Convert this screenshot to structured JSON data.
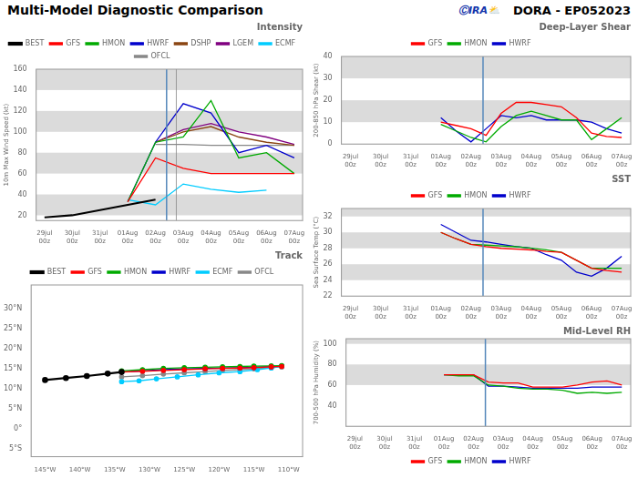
{
  "title": "Multi-Model Diagnostic Comparison",
  "subtitle": "DORA - EP052023",
  "annotation": {
    "text": "ⒸIRA⛅",
    "color": "#1133aa"
  },
  "chart_data": [
    {
      "type": "line",
      "title": "Intensity",
      "ylabel": "10m Max Wind Speed (kt)",
      "x": [
        0,
        1,
        2,
        3,
        4,
        5,
        6,
        7,
        8,
        9
      ],
      "xlim": [
        -0.3,
        9.3
      ],
      "xticks": [
        {
          "value": 0,
          "label": "29jul\n00z"
        },
        {
          "value": 1,
          "label": "30jul\n00z"
        },
        {
          "value": 2,
          "label": "31jul\n00z"
        },
        {
          "value": 3,
          "label": "01Aug\n00z"
        },
        {
          "value": 4,
          "label": "02Aug\n00z"
        },
        {
          "value": 5,
          "label": "03Aug\n00z"
        },
        {
          "value": 6,
          "label": "04Aug\n00z"
        },
        {
          "value": 7,
          "label": "05Aug\n00z"
        },
        {
          "value": 8,
          "label": "06Aug\n00z"
        },
        {
          "value": 9,
          "label": "07Aug\n00z"
        }
      ],
      "ylim": [
        15,
        160
      ],
      "yticks": [
        20,
        40,
        60,
        80,
        100,
        120,
        140,
        160
      ],
      "grid": false,
      "legend": "top",
      "bands": [
        {
          "from": 20,
          "to": 40,
          "color": "#cccccc"
        },
        {
          "from": 60,
          "to": 80,
          "color": "#cccccc"
        },
        {
          "from": 100,
          "to": 120,
          "color": "#cccccc"
        },
        {
          "from": 140,
          "to": 160,
          "color": "#cccccc"
        }
      ],
      "vlines": [
        {
          "value": 4.4,
          "color": "#5588bb"
        },
        {
          "value": 4.75,
          "color": "#888888"
        }
      ],
      "series": [
        {
          "name": "BEST",
          "color": "#000000",
          "values": [
            18,
            20,
            25,
            30,
            35,
            null,
            null,
            null,
            null,
            null
          ]
        },
        {
          "name": "GFS",
          "color": "#ff0000",
          "values": [
            null,
            null,
            null,
            33,
            75,
            65,
            60,
            60,
            60,
            60
          ]
        },
        {
          "name": "HMON",
          "color": "#00aa00",
          "values": [
            null,
            null,
            null,
            33,
            90,
            95,
            130,
            75,
            80,
            60
          ]
        },
        {
          "name": "HWRF",
          "color": "#0000cc",
          "values": [
            null,
            null,
            null,
            33,
            90,
            127,
            118,
            80,
            87,
            75
          ]
        },
        {
          "name": "DSHP",
          "color": "#8B4513",
          "values": [
            null,
            null,
            null,
            null,
            90,
            100,
            105,
            95,
            90,
            87
          ]
        },
        {
          "name": "LGEM",
          "color": "#800080",
          "values": [
            null,
            null,
            null,
            null,
            90,
            102,
            108,
            100,
            95,
            88
          ]
        },
        {
          "name": "ECMF",
          "color": "#00ccff",
          "values": [
            null,
            null,
            null,
            35,
            30,
            50,
            45,
            42,
            44,
            null
          ]
        },
        {
          "name": "OFCL",
          "color": "#888888",
          "values": [
            null,
            null,
            null,
            null,
            88,
            88,
            87,
            87,
            87,
            87
          ]
        }
      ]
    },
    {
      "type": "line",
      "title": "Track",
      "xlim": [
        -147,
        -108
      ],
      "xticks": [
        {
          "value": -145,
          "label": "145°W"
        },
        {
          "value": -140,
          "label": "140°W"
        },
        {
          "value": -135,
          "label": "135°W"
        },
        {
          "value": -130,
          "label": "130°W"
        },
        {
          "value": -125,
          "label": "125°W"
        },
        {
          "value": -120,
          "label": "120°W"
        },
        {
          "value": -115,
          "label": "115°W"
        },
        {
          "value": -110,
          "label": "110°W"
        }
      ],
      "ylim": [
        -7,
        36
      ],
      "yticks": [
        {
          "value": -5,
          "label": "5°S"
        },
        {
          "value": 0,
          "label": "0°"
        },
        {
          "value": 5,
          "label": "5°N"
        },
        {
          "value": 10,
          "label": "10°N"
        },
        {
          "value": 15,
          "label": "15°N"
        },
        {
          "value": 20,
          "label": "20°N"
        },
        {
          "value": 25,
          "label": "25°N"
        },
        {
          "value": 30,
          "label": "30°N"
        }
      ],
      "grid": false,
      "legend": "top",
      "series": [
        {
          "name": "BEST",
          "color": "#000000",
          "marker": "circle",
          "x": [
            -145,
            -142,
            -139,
            -136,
            -134
          ],
          "values": [
            12.2,
            12.7,
            13.2,
            13.8,
            14.2
          ]
        },
        {
          "name": "GFS",
          "color": "#ff0000",
          "marker": "circle",
          "x": [
            -134,
            -131,
            -128,
            -125,
            -122,
            -119.5,
            -117,
            -115,
            -112.5,
            -111
          ],
          "values": [
            14.2,
            14.4,
            14.6,
            14.8,
            15.0,
            15.1,
            15.2,
            15.3,
            15.5,
            15.6
          ]
        },
        {
          "name": "HMON",
          "color": "#00aa00",
          "marker": "circle",
          "x": [
            -134,
            -131,
            -128,
            -125,
            -122,
            -119.5,
            -117,
            -115,
            -112.5,
            -111
          ],
          "values": [
            14.5,
            14.8,
            15.1,
            15.3,
            15.4,
            15.5,
            15.6,
            15.7,
            15.75,
            15.8
          ]
        },
        {
          "name": "HWRF",
          "color": "#0000cc",
          "marker": "circle",
          "x": [
            -134,
            -131,
            -128,
            -125,
            -122,
            -119.5,
            -117,
            -115,
            -112.5,
            -111
          ],
          "values": [
            14.2,
            14.5,
            14.8,
            15.0,
            15.1,
            15.2,
            15.3,
            15.4,
            15.55,
            15.7
          ]
        },
        {
          "name": "ECMF",
          "color": "#00ccff",
          "marker": "circle",
          "x": [
            -134,
            -131.5,
            -129,
            -126,
            -123,
            -120,
            -117,
            -114.5,
            -112.5,
            -111
          ],
          "values": [
            11.8,
            12.0,
            12.5,
            13.0,
            13.5,
            14.0,
            14.3,
            14.8,
            15.2,
            15.6
          ]
        },
        {
          "name": "OFCL",
          "color": "#888888",
          "marker": "circle",
          "x": [
            -134,
            -131,
            -128,
            -125,
            -122,
            -119.5,
            -117,
            -115,
            -112.5,
            -111
          ],
          "values": [
            13.0,
            13.3,
            13.7,
            14.0,
            14.3,
            14.6,
            14.8,
            15.0,
            15.3,
            15.5
          ]
        }
      ]
    },
    {
      "type": "line",
      "title": "Deep-Layer Shear",
      "ylabel": "200-850 hPa Shear (kt)",
      "x": [
        3,
        3.5,
        4,
        4.5,
        5,
        5.5,
        6,
        6.5,
        7,
        7.5,
        8,
        8.5,
        9
      ],
      "xlim": [
        -0.3,
        9.3
      ],
      "xticks": [
        {
          "value": 0,
          "label": "29jul\n00z"
        },
        {
          "value": 1,
          "label": "30jul\n00z"
        },
        {
          "value": 2,
          "label": "31jul\n00z"
        },
        {
          "value": 3,
          "label": "01Aug\n00z"
        },
        {
          "value": 4,
          "label": "02Aug\n00z"
        },
        {
          "value": 5,
          "label": "03Aug\n00z"
        },
        {
          "value": 6,
          "label": "04Aug\n00z"
        },
        {
          "value": 7,
          "label": "05Aug\n00z"
        },
        {
          "value": 8,
          "label": "06Aug\n00z"
        },
        {
          "value": 9,
          "label": "07Aug\n00z"
        }
      ],
      "ylim": [
        0,
        40
      ],
      "yticks": [
        0,
        10,
        20,
        30,
        40
      ],
      "grid": false,
      "legend": "top",
      "bands": [
        {
          "from": 10,
          "to": 20,
          "color": "#cccccc"
        },
        {
          "from": 30,
          "to": 40,
          "color": "#cccccc"
        }
      ],
      "vlines": [
        {
          "value": 4.4,
          "color": "#5588bb"
        }
      ],
      "series": [
        {
          "name": "GFS",
          "color": "#ff0000",
          "values": [
            10,
            8.5,
            7,
            4,
            14,
            19,
            19,
            18,
            17,
            12,
            5,
            3.5,
            3
          ]
        },
        {
          "name": "HMON",
          "color": "#00aa00",
          "values": [
            9,
            6,
            3,
            1,
            8,
            13,
            15,
            13,
            11,
            11,
            2,
            7,
            12
          ]
        },
        {
          "name": "HWRF",
          "color": "#0000cc",
          "values": [
            12,
            6,
            1,
            7,
            13,
            12,
            13,
            11,
            11,
            11,
            10,
            7,
            5
          ]
        }
      ]
    },
    {
      "type": "line",
      "title": "SST",
      "ylabel": "Sea Surface Temp (°C)",
      "x": [
        3,
        3.5,
        4,
        4.5,
        5,
        5.5,
        6,
        6.5,
        7,
        7.5,
        8,
        8.5,
        9
      ],
      "xlim": [
        -0.3,
        9.3
      ],
      "xticks": [
        {
          "value": 0,
          "label": "29jul\n00z"
        },
        {
          "value": 1,
          "label": "30jul\n00z"
        },
        {
          "value": 2,
          "label": "31jul\n00z"
        },
        {
          "value": 3,
          "label": "01Aug\n00z"
        },
        {
          "value": 4,
          "label": "02Aug\n00z"
        },
        {
          "value": 5,
          "label": "03Aug\n00z"
        },
        {
          "value": 6,
          "label": "04Aug\n00z"
        },
        {
          "value": 7,
          "label": "05Aug\n00z"
        },
        {
          "value": 8,
          "label": "06Aug\n00z"
        },
        {
          "value": 9,
          "label": "07Aug\n00z"
        }
      ],
      "ylim": [
        22,
        33
      ],
      "yticks": [
        22,
        24,
        26,
        28,
        30,
        32
      ],
      "grid": false,
      "legend": "top",
      "bands": [
        {
          "from": 24,
          "to": 26,
          "color": "#cccccc"
        },
        {
          "from": 28,
          "to": 30,
          "color": "#cccccc"
        },
        {
          "from": 32,
          "to": 33,
          "color": "#cccccc"
        }
      ],
      "vlines": [
        {
          "value": 4.4,
          "color": "#5588bb"
        }
      ],
      "series": [
        {
          "name": "GFS",
          "color": "#ff0000",
          "values": [
            30.0,
            29.2,
            28.5,
            28.2,
            28.0,
            27.9,
            27.8,
            27.6,
            27.5,
            26.5,
            25.5,
            25.2,
            25.0
          ]
        },
        {
          "name": "HMON",
          "color": "#00aa00",
          "values": [
            30.0,
            29.2,
            28.5,
            28.4,
            28.3,
            28.2,
            28.0,
            27.8,
            27.5,
            26.5,
            25.5,
            25.5,
            25.5
          ]
        },
        {
          "name": "HWRF",
          "color": "#0000cc",
          "values": [
            31.0,
            30.0,
            29.0,
            28.8,
            28.5,
            28.2,
            28.0,
            27.2,
            26.5,
            25.0,
            24.5,
            25.5,
            27.0
          ]
        }
      ]
    },
    {
      "type": "line",
      "title": "Mid-Level RH",
      "ylabel": "700-500 hPa Humidity (%)",
      "x": [
        3,
        3.5,
        4,
        4.5,
        5,
        5.5,
        6,
        6.5,
        7,
        7.5,
        8,
        8.5,
        9
      ],
      "xlim": [
        -0.3,
        9.3
      ],
      "xticks": [
        {
          "value": 0,
          "label": "29jul\n00z"
        },
        {
          "value": 1,
          "label": "30jul\n00z"
        },
        {
          "value": 2,
          "label": "31jul\n00z"
        },
        {
          "value": 3,
          "label": "01Aug\n00z"
        },
        {
          "value": 4,
          "label": "02Aug\n00z"
        },
        {
          "value": 5,
          "label": "03Aug\n00z"
        },
        {
          "value": 6,
          "label": "04Aug\n00z"
        },
        {
          "value": 7,
          "label": "05Aug\n00z"
        },
        {
          "value": 8,
          "label": "06Aug\n00z"
        },
        {
          "value": 9,
          "label": "07Aug\n00z"
        }
      ],
      "ylim": [
        20,
        105
      ],
      "yticks": [
        40,
        60,
        80,
        100
      ],
      "grid": false,
      "legend": "bottom",
      "bands": [
        {
          "from": 60,
          "to": 80,
          "color": "#cccccc"
        },
        {
          "from": 100,
          "to": 105,
          "color": "#cccccc"
        }
      ],
      "vlines": [
        {
          "value": 4.4,
          "color": "#5588bb"
        }
      ],
      "series": [
        {
          "name": "GFS",
          "color": "#ff0000",
          "values": [
            70,
            70,
            70,
            63,
            62,
            62,
            58,
            58,
            58,
            60,
            63,
            64,
            60
          ]
        },
        {
          "name": "HMON",
          "color": "#00aa00",
          "values": [
            70,
            69,
            69,
            60,
            59,
            57,
            56,
            56,
            55,
            52,
            53,
            52,
            53
          ]
        },
        {
          "name": "HWRF",
          "color": "#0000cc",
          "values": [
            70,
            70,
            70,
            59,
            59,
            58,
            57,
            57,
            57,
            57,
            58,
            58,
            58
          ]
        }
      ]
    }
  ]
}
